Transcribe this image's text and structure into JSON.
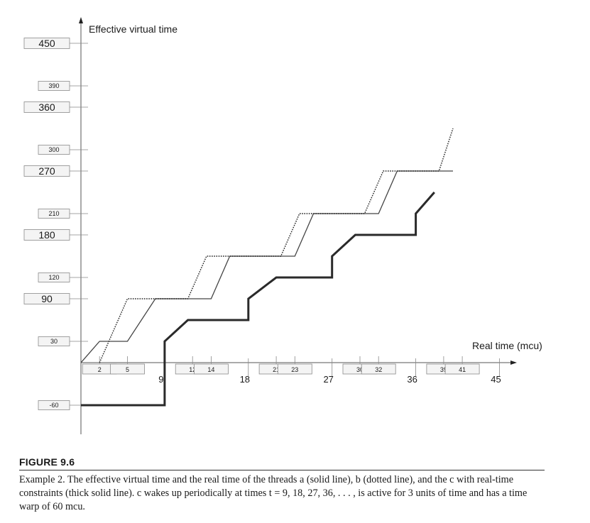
{
  "chart_data": {
    "type": "line",
    "ylabel": "Effective virtual time",
    "xlabel": "Real time (mcu)",
    "y_ticks": [
      {
        "value": 450,
        "label": "450",
        "size": "large"
      },
      {
        "value": 390,
        "label": "390",
        "size": "small"
      },
      {
        "value": 360,
        "label": "360",
        "size": "large"
      },
      {
        "value": 300,
        "label": "300",
        "size": "small"
      },
      {
        "value": 270,
        "label": "270",
        "size": "large"
      },
      {
        "value": 210,
        "label": "210",
        "size": "small"
      },
      {
        "value": 180,
        "label": "180",
        "size": "large"
      },
      {
        "value": 120,
        "label": "120",
        "size": "small"
      },
      {
        "value": 90,
        "label": "90",
        "size": "large"
      },
      {
        "value": 30,
        "label": "30",
        "size": "small"
      },
      {
        "value": -60,
        "label": "-60",
        "size": "small"
      }
    ],
    "x_ticks_small": [
      {
        "value": 2,
        "label": "2"
      },
      {
        "value": 5,
        "label": "5"
      },
      {
        "value": 12,
        "label": "12"
      },
      {
        "value": 14,
        "label": "14"
      },
      {
        "value": 21,
        "label": "21"
      },
      {
        "value": 23,
        "label": "23"
      },
      {
        "value": 30,
        "label": "30"
      },
      {
        "value": 32,
        "label": "32"
      },
      {
        "value": 39,
        "label": "39"
      },
      {
        "value": 41,
        "label": "41"
      }
    ],
    "x_ticks_large": [
      {
        "value": 9,
        "label": "9"
      },
      {
        "value": 18,
        "label": "18"
      },
      {
        "value": 27,
        "label": "27"
      },
      {
        "value": 36,
        "label": "36"
      },
      {
        "value": 45,
        "label": "45"
      }
    ],
    "series": [
      {
        "style": "solid",
        "points": [
          [
            0,
            0
          ],
          [
            2,
            30
          ],
          [
            5,
            30
          ],
          [
            8,
            90
          ],
          [
            14,
            90
          ],
          [
            16,
            150
          ],
          [
            23,
            150
          ],
          [
            25,
            210
          ],
          [
            32,
            210
          ],
          [
            34,
            270
          ],
          [
            40,
            270
          ]
        ]
      },
      {
        "style": "dotted",
        "points": [
          [
            2,
            0
          ],
          [
            5,
            90
          ],
          [
            11.5,
            90
          ],
          [
            13.5,
            150
          ],
          [
            21.5,
            150
          ],
          [
            23.5,
            210
          ],
          [
            30.5,
            210
          ],
          [
            32.5,
            270
          ],
          [
            38.5,
            270
          ],
          [
            40,
            330
          ]
        ]
      },
      {
        "style": "thick",
        "points": [
          [
            0,
            -60
          ],
          [
            9,
            -60
          ],
          [
            9,
            30
          ],
          [
            11.5,
            60
          ],
          [
            18,
            60
          ],
          [
            18,
            90
          ],
          [
            21,
            120
          ],
          [
            27,
            120
          ],
          [
            27,
            150
          ],
          [
            29.5,
            180
          ],
          [
            36,
            180
          ],
          [
            36,
            210
          ],
          [
            38,
            240
          ]
        ]
      }
    ]
  },
  "caption": {
    "label": "FIGURE 9.6",
    "text": "Example 2. The effective virtual time and the real time of the threads a (solid line), b (dotted line), and the c with real-time constraints (thick solid line). c wakes up periodically at times t = 9, 18, 27, 36, . . . , is active for 3 units of time and has a time warp of 60 mcu."
  }
}
